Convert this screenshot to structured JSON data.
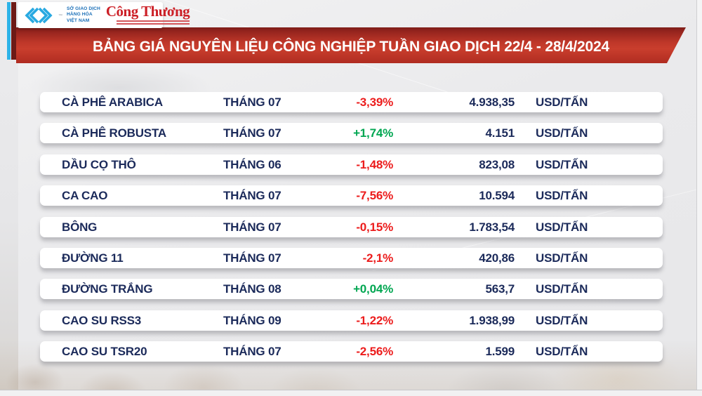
{
  "header": {
    "mxv": {
      "trademark": "™",
      "org_line1": "SỞ GIAO DỊCH",
      "org_line2": "HÀNG HÓA",
      "org_line3": "VIỆT NAM"
    },
    "congthuong": {
      "name": "Công Thương"
    }
  },
  "colors": {
    "banner_red": "#c23a2b",
    "banner_dark_red": "#7e1d18",
    "accent_cyan": "#2eb3e8",
    "accent_maroon": "#6d1a16",
    "row_text_navy": "#1b2a5a",
    "increase_green": "#00a651",
    "decrease_red": "#ec1c1c"
  },
  "chart_data": {
    "type": "table",
    "title": "BẢNG GIÁ NGUYÊN LIỆU CÔNG NGHIỆP TUẦN GIAO DỊCH 22/4 - 28/4/2024",
    "unit": "USD/TẤN",
    "rows": [
      {
        "name": "CÀ PHÊ ARABICA",
        "month": "THÁNG 07",
        "change": "-3,39%",
        "change_pct": -3.39,
        "price": "4.938,35",
        "price_value": 4938.35,
        "unit": "USD/TẤN"
      },
      {
        "name": "CÀ PHÊ ROBUSTA",
        "month": "THÁNG 07",
        "change": "+1,74%",
        "change_pct": 1.74,
        "price": "4.151",
        "price_value": 4151,
        "unit": "USD/TẤN"
      },
      {
        "name": "DẦU CỌ THÔ",
        "month": "THÁNG 06",
        "change": "-1,48%",
        "change_pct": -1.48,
        "price": "823,08",
        "price_value": 823.08,
        "unit": "USD/TẤN"
      },
      {
        "name": "CA CAO",
        "month": "THÁNG 07",
        "change": "-7,56%",
        "change_pct": -7.56,
        "price": "10.594",
        "price_value": 10594,
        "unit": "USD/TẤN"
      },
      {
        "name": "BÔNG",
        "month": "THÁNG 07",
        "change": "-0,15%",
        "change_pct": -0.15,
        "price": "1.783,54",
        "price_value": 1783.54,
        "unit": "USD/TẤN"
      },
      {
        "name": "ĐƯỜNG 11",
        "month": "THÁNG 07",
        "change": "-2,1%",
        "change_pct": -2.1,
        "price": "420,86",
        "price_value": 420.86,
        "unit": "USD/TẤN"
      },
      {
        "name": "ĐƯỜNG TRẮNG",
        "month": "THÁNG 08",
        "change": "+0,04%",
        "change_pct": 0.04,
        "price": "563,7",
        "price_value": 563.7,
        "unit": "USD/TẤN"
      },
      {
        "name": "CAO SU RSS3",
        "month": "THÁNG 09",
        "change": "-1,22%",
        "change_pct": -1.22,
        "price": "1.938,99",
        "price_value": 1938.99,
        "unit": "USD/TẤN"
      },
      {
        "name": "CAO SU TSR20",
        "month": "THÁNG 07",
        "change": "-2,56%",
        "change_pct": -2.56,
        "price": "1.599",
        "price_value": 1599,
        "unit": "USD/TẤN"
      }
    ]
  }
}
